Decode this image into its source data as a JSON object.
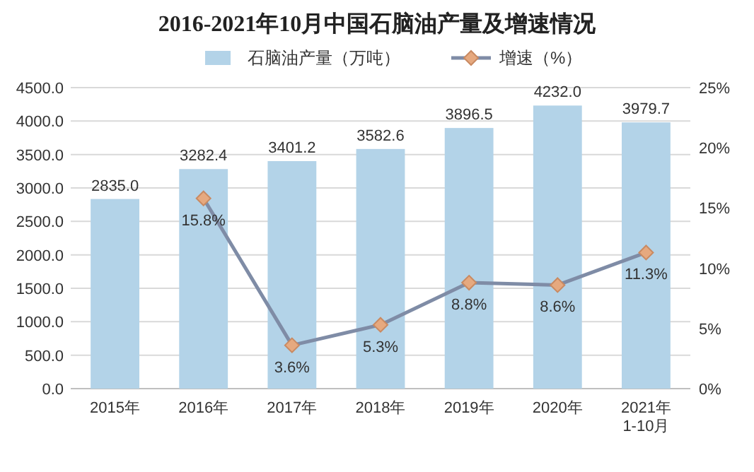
{
  "chart_data": {
    "type": "bar",
    "title": "2016-2021年10月中国石脑油产量及增速情况",
    "categories": [
      "2015年",
      "2016年",
      "2017年",
      "2018年",
      "2019年",
      "2020年",
      "2021年\n1-10月"
    ],
    "series": [
      {
        "name": "石脑油产量（万吨）",
        "color": "#b3d3e8",
        "values": [
          2835.0,
          3282.4,
          3401.2,
          3582.6,
          3896.5,
          4232.0,
          3979.7
        ],
        "value_labels": [
          "2835.0",
          "3282.4",
          "3401.2",
          "3582.6",
          "3896.5",
          "4232.0",
          "3979.7"
        ]
      },
      {
        "name": "增速（%）",
        "type": "line",
        "axis": "y2",
        "color": "#7f8ca6",
        "marker": "diamond",
        "values": [
          null,
          15.8,
          3.6,
          5.3,
          8.8,
          8.6,
          11.3
        ],
        "value_labels": [
          null,
          "15.8%",
          "3.6%",
          "5.3%",
          "8.8%",
          "8.6%",
          "11.3%"
        ]
      }
    ],
    "ylim": [
      0,
      4500
    ],
    "yticks": [
      {
        "value": 0,
        "label": "0.0"
      },
      {
        "value": 500,
        "label": "500.0"
      },
      {
        "value": 1000,
        "label": "1000.0"
      },
      {
        "value": 1500,
        "label": "1500.0"
      },
      {
        "value": 2000,
        "label": "2000.0"
      },
      {
        "value": 2500,
        "label": "2500.0"
      },
      {
        "value": 3000,
        "label": "3000.0"
      },
      {
        "value": 3500,
        "label": "3500.0"
      },
      {
        "value": 4000,
        "label": "4000.0"
      },
      {
        "value": 4500,
        "label": "4500.0"
      }
    ],
    "y2lim": [
      0,
      25
    ],
    "y2ticks": [
      {
        "value": 0,
        "label": "0%"
      },
      {
        "value": 5,
        "label": "5%"
      },
      {
        "value": 10,
        "label": "10%"
      },
      {
        "value": 15,
        "label": "15%"
      },
      {
        "value": 20,
        "label": "20%"
      },
      {
        "value": 25,
        "label": "25%"
      }
    ],
    "grid": "y",
    "legend": "top"
  }
}
